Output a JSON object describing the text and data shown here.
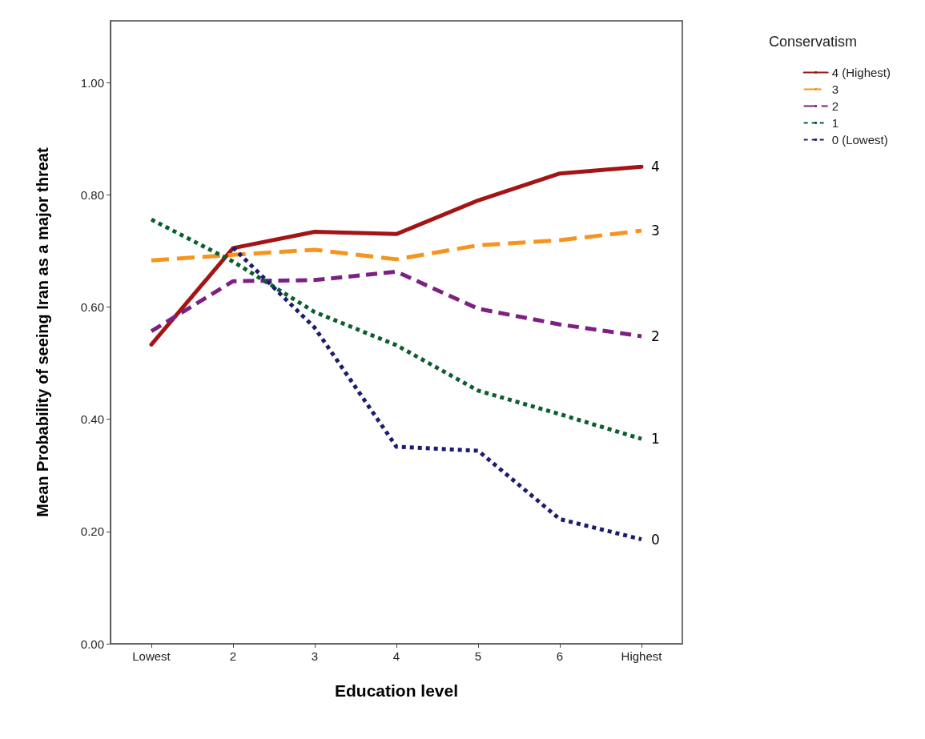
{
  "chart_data": {
    "type": "line",
    "xlabel": "Education level",
    "ylabel": "Mean Probability of seeing Iran as a major threat",
    "legend_title": "Conservatism",
    "categories": [
      "Lowest",
      "2",
      "3",
      "4",
      "5",
      "6",
      "Highest"
    ],
    "series": [
      {
        "name": "4 (Highest)",
        "color": "#a31515",
        "line_style": "solid",
        "values": [
          0.533,
          0.705,
          0.734,
          0.73,
          0.79,
          0.838,
          0.85
        ]
      },
      {
        "name": "3",
        "color": "#f7931e",
        "line_style": "dashed",
        "values": [
          0.683,
          0.693,
          0.702,
          0.685,
          0.71,
          0.719,
          0.736
        ]
      },
      {
        "name": "2",
        "color": "#7b2182",
        "line_style": "dashed",
        "values": [
          0.557,
          0.646,
          0.648,
          0.663,
          0.597,
          0.569,
          0.548
        ]
      },
      {
        "name": "1",
        "color": "#0b5e2e",
        "line_style": "dotted",
        "values": [
          0.756,
          0.681,
          0.591,
          0.532,
          0.451,
          0.409,
          0.365
        ]
      },
      {
        "name": "0 (Lowest)",
        "color": "#1c1c6e",
        "line_style": "dotted",
        "values": [
          null,
          0.706,
          0.563,
          0.351,
          0.344,
          0.222,
          0.186
        ]
      }
    ],
    "annotations": [
      {
        "text": "4",
        "x": "Highest",
        "y": 0.85
      },
      {
        "text": "3",
        "x": "Highest",
        "y": 0.736
      },
      {
        "text": "2",
        "x": "Highest",
        "y": 0.548
      },
      {
        "text": "1",
        "x": "Highest",
        "y": 0.365
      },
      {
        "text": "0",
        "x": "Highest",
        "y": 0.186
      }
    ],
    "ylim": [
      0,
      1.11
    ],
    "yticks": [
      {
        "value": 0,
        "label": "0.00"
      },
      {
        "value": 0.2,
        "label": "0.20"
      },
      {
        "value": 0.4,
        "label": "0.40"
      },
      {
        "value": 0.6,
        "label": "0.60"
      },
      {
        "value": 0.8,
        "label": "0.80"
      },
      {
        "value": 1,
        "label": "1.00"
      }
    ],
    "grid": false,
    "legend": "top right",
    "marker": "none"
  }
}
